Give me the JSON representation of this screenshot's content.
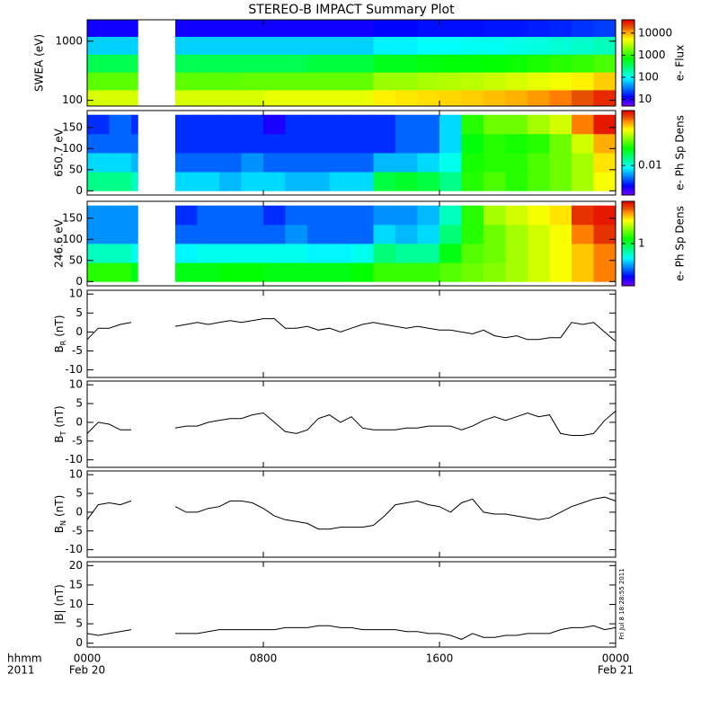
{
  "title": "STEREO-B IMPACT Summary Plot",
  "timestamp": "Fri Jul  8 18:28:55 2011",
  "chart_data": [
    {
      "type": "heatmap",
      "ylabel": "SWEA (eV)",
      "ylog": true,
      "ylim": [
        80,
        2300
      ],
      "yticks": [
        100,
        1000
      ],
      "xlim": [
        0,
        24
      ],
      "time_edges": [
        0,
        1,
        2,
        2.3,
        4,
        5,
        6,
        7,
        8,
        9,
        10,
        11,
        12,
        13,
        14,
        15,
        16,
        17,
        18,
        19,
        20,
        21,
        22,
        23,
        24
      ],
      "y_edges": [
        80,
        150,
        300,
        600,
        1200,
        2300
      ],
      "values": [
        [
          4000,
          4000,
          4000,
          null,
          4000,
          4000,
          4000,
          4000,
          4500,
          4500,
          4500,
          4500,
          4500,
          6000,
          6500,
          7000,
          7500,
          8000,
          9000,
          10000,
          12000,
          15000,
          20000,
          28000
        ],
        [
          1500,
          1500,
          1500,
          null,
          1500,
          1500,
          1500,
          1600,
          1600,
          1600,
          1600,
          1600,
          1600,
          2500,
          2500,
          2800,
          3000,
          3200,
          3500,
          4000,
          4500,
          5000,
          6000,
          8000
        ],
        [
          400,
          400,
          400,
          null,
          400,
          400,
          400,
          400,
          400,
          400,
          450,
          450,
          450,
          600,
          600,
          650,
          700,
          700,
          750,
          800,
          900,
          1000,
          1100,
          1300
        ],
        [
          70,
          70,
          70,
          null,
          70,
          70,
          70,
          70,
          70,
          70,
          70,
          70,
          70,
          90,
          90,
          100,
          100,
          110,
          110,
          120,
          130,
          140,
          150,
          170
        ],
        [
          12,
          12,
          12,
          null,
          12,
          12,
          12,
          12,
          12,
          12,
          12,
          12,
          12,
          14,
          14,
          15,
          15,
          15,
          16,
          16,
          17,
          18,
          20,
          22
        ]
      ],
      "clim": [
        5,
        40000
      ],
      "clog": true,
      "cticks": [
        10,
        100,
        1000,
        10000
      ],
      "clabel": "e- Flux"
    },
    {
      "type": "heatmap",
      "ylabel": "650.7 eV",
      "ylim": [
        -10,
        190
      ],
      "yticks": [
        0,
        50,
        100,
        150
      ],
      "xlim": [
        0,
        24
      ],
      "time_edges": [
        0,
        1,
        2,
        2.3,
        4,
        5,
        6,
        7,
        8,
        9,
        10,
        11,
        12,
        13,
        14,
        15,
        16,
        17,
        18,
        19,
        20,
        21,
        22,
        23,
        24
      ],
      "y_edges": [
        0,
        45,
        90,
        135,
        180
      ],
      "values": [
        [
          0.015,
          0.015,
          0.012,
          null,
          0.008,
          0.008,
          0.007,
          0.008,
          0.008,
          0.007,
          0.007,
          0.008,
          0.008,
          0.02,
          0.022,
          0.02,
          0.015,
          0.03,
          0.035,
          0.03,
          0.035,
          0.04,
          0.05,
          0.07
        ],
        [
          0.008,
          0.008,
          0.007,
          null,
          0.005,
          0.005,
          0.005,
          0.006,
          0.005,
          0.005,
          0.005,
          0.005,
          0.005,
          0.007,
          0.007,
          0.008,
          0.01,
          0.028,
          0.03,
          0.03,
          0.035,
          0.04,
          0.05,
          0.08
        ],
        [
          0.005,
          0.005,
          0.005,
          null,
          0.004,
          0.004,
          0.004,
          0.004,
          0.004,
          0.004,
          0.004,
          0.004,
          0.004,
          0.004,
          0.005,
          0.005,
          0.008,
          0.025,
          0.03,
          0.028,
          0.03,
          0.04,
          0.06,
          0.1
        ],
        [
          0.004,
          0.005,
          0.004,
          null,
          0.004,
          0.004,
          0.004,
          0.004,
          0.003,
          0.004,
          0.004,
          0.004,
          0.004,
          0.004,
          0.005,
          0.005,
          0.008,
          0.03,
          0.04,
          0.04,
          0.05,
          0.06,
          0.12,
          0.18
        ]
      ],
      "clim": [
        0.002,
        0.2
      ],
      "clog": true,
      "cticks": [
        0.01
      ],
      "clabel": "e- Ph Sp Dens"
    },
    {
      "type": "heatmap",
      "ylabel": "246.6 eV",
      "ylim": [
        -10,
        190
      ],
      "yticks": [
        0,
        50,
        100,
        150
      ],
      "xlim": [
        0,
        24
      ],
      "time_edges": [
        0,
        1,
        2,
        2.3,
        4,
        5,
        6,
        7,
        8,
        9,
        10,
        11,
        12,
        13,
        14,
        15,
        16,
        17,
        18,
        19,
        20,
        21,
        22,
        23,
        24
      ],
      "y_edges": [
        0,
        45,
        90,
        135,
        180
      ],
      "values": [
        [
          1.5,
          1.5,
          1.2,
          null,
          1.2,
          1.2,
          1.3,
          1.3,
          1.2,
          1.2,
          1.2,
          1.2,
          1.3,
          1.6,
          1.6,
          1.6,
          1.8,
          2,
          2.2,
          2.5,
          3,
          3.5,
          4.5,
          6
        ],
        [
          0.6,
          0.6,
          0.5,
          null,
          0.45,
          0.5,
          0.5,
          0.5,
          0.5,
          0.5,
          0.45,
          0.45,
          0.5,
          0.8,
          0.7,
          0.7,
          1.2,
          1.8,
          2,
          2.5,
          3,
          3.5,
          4.5,
          6
        ],
        [
          0.3,
          0.3,
          0.3,
          null,
          0.25,
          0.25,
          0.25,
          0.25,
          0.25,
          0.3,
          0.25,
          0.25,
          0.25,
          0.4,
          0.35,
          0.4,
          0.8,
          1.5,
          2,
          2.5,
          3,
          3.5,
          6,
          8
        ],
        [
          0.3,
          0.3,
          0.3,
          null,
          0.2,
          0.25,
          0.25,
          0.25,
          0.2,
          0.25,
          0.25,
          0.25,
          0.25,
          0.3,
          0.3,
          0.35,
          0.6,
          1.5,
          2.5,
          3,
          3.5,
          4,
          8,
          9
        ]
      ],
      "clim": [
        0.1,
        10
      ],
      "clog": true,
      "cticks": [
        1
      ],
      "clabel": "e- Ph Sp Dens"
    },
    {
      "type": "line",
      "ylabel": {
        "symbol": "B",
        "subscript": "R",
        "unit": "(nT)"
      },
      "ylim": [
        -12,
        11
      ],
      "yticks": [
        -10,
        -5,
        0,
        5,
        10
      ],
      "xlim": [
        0,
        24
      ],
      "color": "#000000",
      "x": [
        0,
        0.5,
        1,
        1.5,
        2,
        2.5,
        3,
        3.5,
        4,
        4.5,
        5,
        5.5,
        6,
        6.5,
        7,
        7.5,
        8,
        8.5,
        9,
        9.5,
        10,
        10.5,
        11,
        11.5,
        12,
        12.5,
        13,
        13.5,
        14,
        14.5,
        15,
        15.5,
        16,
        16.5,
        17,
        17.5,
        18,
        18.5,
        19,
        19.5,
        20,
        20.5,
        21,
        21.5,
        22,
        22.5,
        23,
        23.5,
        24
      ],
      "values": [
        -2,
        1,
        1,
        2,
        2.5,
        null,
        null,
        null,
        1.5,
        2,
        2.5,
        2,
        2.5,
        3,
        2.5,
        3,
        3.5,
        3.5,
        1,
        1,
        1.5,
        0.5,
        1,
        0,
        1,
        2,
        2.5,
        2,
        1.5,
        1,
        1.5,
        1,
        0.5,
        0.5,
        0,
        -0.5,
        0.5,
        -1,
        -1.5,
        -1,
        -2,
        -2,
        -1.5,
        -1.5,
        2.5,
        2,
        2.5,
        0,
        -2.5
      ]
    },
    {
      "type": "line",
      "ylabel": {
        "symbol": "B",
        "subscript": "T",
        "unit": "(nT)"
      },
      "ylim": [
        -12,
        11
      ],
      "yticks": [
        -10,
        -5,
        0,
        5,
        10
      ],
      "xlim": [
        0,
        24
      ],
      "color": "#000000",
      "x": [
        0,
        0.5,
        1,
        1.5,
        2,
        2.5,
        3,
        3.5,
        4,
        4.5,
        5,
        5.5,
        6,
        6.5,
        7,
        7.5,
        8,
        8.5,
        9,
        9.5,
        10,
        10.5,
        11,
        11.5,
        12,
        12.5,
        13,
        13.5,
        14,
        14.5,
        15,
        15.5,
        16,
        16.5,
        17,
        17.5,
        18,
        18.5,
        19,
        19.5,
        20,
        20.5,
        21,
        21.5,
        22,
        22.5,
        23,
        23.5,
        24
      ],
      "values": [
        -3,
        0,
        -0.5,
        -2,
        -2,
        null,
        null,
        null,
        -1.5,
        -1,
        -1,
        0,
        0.5,
        1,
        1,
        2,
        2.5,
        0,
        -2.5,
        -3,
        -2,
        1,
        2,
        0,
        1.5,
        -1.5,
        -2,
        -2,
        -2,
        -1.5,
        -1.5,
        -1,
        -1,
        -1,
        -2,
        -1,
        0.5,
        1.5,
        0.5,
        1.5,
        2.5,
        1.5,
        2,
        -3,
        -3.5,
        -3.5,
        -3,
        0.5,
        3
      ]
    },
    {
      "type": "line",
      "ylabel": {
        "symbol": "B",
        "subscript": "N",
        "unit": "(nT)"
      },
      "ylim": [
        -12,
        11
      ],
      "yticks": [
        -10,
        -5,
        0,
        5,
        10
      ],
      "xlim": [
        0,
        24
      ],
      "color": "#000000",
      "x": [
        0,
        0.5,
        1,
        1.5,
        2,
        2.5,
        3,
        3.5,
        4,
        4.5,
        5,
        5.5,
        6,
        6.5,
        7,
        7.5,
        8,
        8.5,
        9,
        9.5,
        10,
        10.5,
        11,
        11.5,
        12,
        12.5,
        13,
        13.5,
        14,
        14.5,
        15,
        15.5,
        16,
        16.5,
        17,
        17.5,
        18,
        18.5,
        19,
        19.5,
        20,
        20.5,
        21,
        21.5,
        22,
        22.5,
        23,
        23.5,
        24
      ],
      "values": [
        -2,
        2,
        2.5,
        2,
        3,
        null,
        null,
        null,
        1.5,
        0,
        0,
        1,
        1.5,
        3,
        3,
        2.5,
        1,
        -1,
        -2,
        -2.5,
        -3,
        -4.5,
        -4.5,
        -4,
        -4,
        -4,
        -3.5,
        -1,
        2,
        2.5,
        3,
        2,
        1.5,
        0,
        2.5,
        3.5,
        0,
        -0.5,
        -0.5,
        -1,
        -1.5,
        -2,
        -1.5,
        0,
        1.5,
        2.5,
        3.5,
        4,
        3
      ]
    },
    {
      "type": "line",
      "ylabel": {
        "symbol": "|B|",
        "unit": "(nT)"
      },
      "ylim": [
        -1,
        21
      ],
      "yticks": [
        0,
        5,
        10,
        15,
        20
      ],
      "xlim": [
        0,
        24
      ],
      "color": "#000000",
      "x": [
        0,
        0.5,
        1,
        1.5,
        2,
        2.5,
        3,
        3.5,
        4,
        4.5,
        5,
        5.5,
        6,
        6.5,
        7,
        7.5,
        8,
        8.5,
        9,
        9.5,
        10,
        10.5,
        11,
        11.5,
        12,
        12.5,
        13,
        13.5,
        14,
        14.5,
        15,
        15.5,
        16,
        16.5,
        17,
        17.5,
        18,
        18.5,
        19,
        19.5,
        20,
        20.5,
        21,
        21.5,
        22,
        22.5,
        23,
        23.5,
        24
      ],
      "values": [
        2.5,
        2,
        2.5,
        3,
        3.5,
        null,
        null,
        null,
        2.5,
        2.5,
        2.5,
        3,
        3.5,
        3.5,
        3.5,
        3.5,
        3.5,
        3.5,
        4,
        4,
        4,
        4.5,
        4.5,
        4,
        4,
        3.5,
        3.5,
        3.5,
        3.5,
        3,
        3,
        2.5,
        2.5,
        2,
        1,
        2.5,
        1.5,
        1.5,
        2,
        2,
        2.5,
        2.5,
        2.5,
        3.5,
        4,
        4,
        4.5,
        3.5,
        4
      ],
      "xticks": [
        {
          "value": 0,
          "label": "0000"
        },
        {
          "value": 8,
          "label": "0800"
        },
        {
          "value": 16,
          "label": "1600"
        },
        {
          "value": 24,
          "label": "0000"
        }
      ],
      "date_labels": [
        {
          "value": 0,
          "label": "Feb 20"
        },
        {
          "value": 24,
          "label": "Feb 21"
        }
      ],
      "xlabel": "hhmm",
      "year": "2011"
    }
  ]
}
